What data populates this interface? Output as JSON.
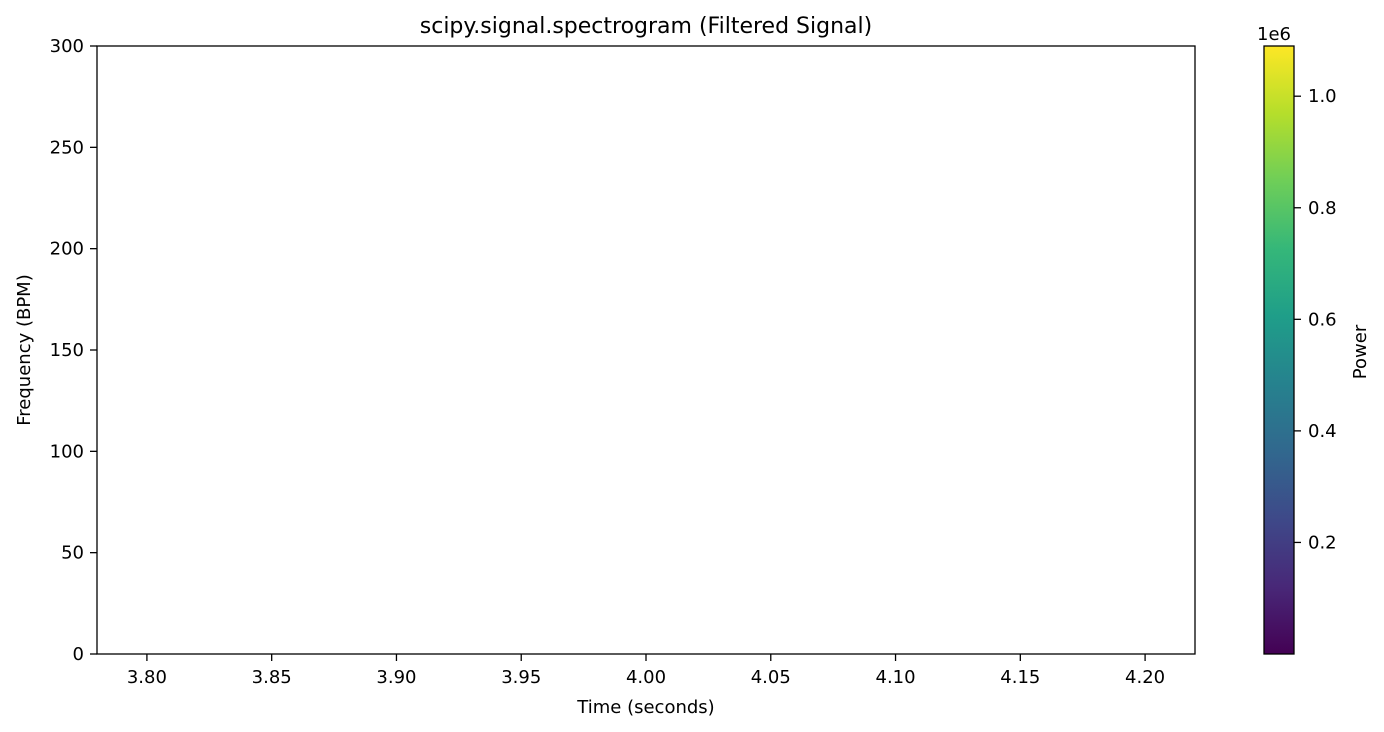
{
  "chart_data": {
    "type": "heatmap",
    "title": "scipy.signal.spectrogram (Filtered Signal)",
    "xlabel": "Time (seconds)",
    "ylabel": "Frequency (BPM)",
    "xlim": [
      3.78,
      4.22
    ],
    "ylim": [
      0,
      300
    ],
    "x_ticks": [
      3.8,
      3.85,
      3.9,
      3.95,
      4.0,
      4.05,
      4.1,
      4.15,
      4.2
    ],
    "x_tick_labels": [
      "3.80",
      "3.85",
      "3.90",
      "3.95",
      "4.00",
      "4.05",
      "4.10",
      "4.15",
      "4.20"
    ],
    "y_ticks": [
      0,
      50,
      100,
      150,
      200,
      250,
      300
    ],
    "y_tick_labels": [
      "0",
      "50",
      "100",
      "150",
      "200",
      "250",
      "300"
    ],
    "grid": false,
    "data": [],
    "colorbar": {
      "label": "Power",
      "colormap": "viridis",
      "range": [
        0,
        1090000
      ],
      "offset_text": "1e6",
      "ticks": [
        0.2,
        0.4,
        0.6,
        0.8,
        1.0
      ],
      "tick_labels": [
        "0.2",
        "0.4",
        "0.6",
        "0.8",
        "1.0"
      ],
      "colors": [
        "#440154",
        "#482878",
        "#3e4989",
        "#31688e",
        "#26828e",
        "#1f9e89",
        "#35b779",
        "#6ece58",
        "#b5de2b",
        "#fde725"
      ]
    }
  }
}
